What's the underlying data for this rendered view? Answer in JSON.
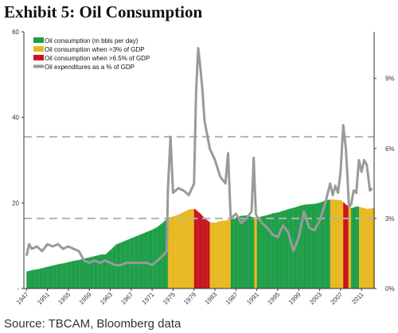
{
  "title": "Exhibit 5: Oil Consumption",
  "source": "Source: TBCAM, Bloomberg data",
  "chart_data": {
    "type": "bar",
    "title": "Exhibit 5: Oil Consumption",
    "x_tick_labels": [
      "1947",
      "1951",
      "1955",
      "1959",
      "1963",
      "1967",
      "1971",
      "1975",
      "1979",
      "1983",
      "1987",
      "1991",
      "1995",
      "1999",
      "2003",
      "2007",
      "2011"
    ],
    "y_left": {
      "ticks": [
        0,
        20,
        40,
        60
      ],
      "tick_labels": [
        "-",
        "20",
        "40",
        "60"
      ],
      "range": [
        0,
        60
      ]
    },
    "y_right": {
      "ticks": [
        0,
        3,
        6,
        9
      ],
      "tick_labels": [
        "0%",
        "3%",
        "6%",
        "9%"
      ],
      "range": [
        0,
        11
      ]
    },
    "x_range": [
      1946.5,
      2013.4
    ],
    "legend_position": "top-left",
    "legend": [
      {
        "label": "Oil consumption (m bbls per day)",
        "color": "#1e9e48"
      },
      {
        "label": "Oil consumption when >3% of GDP",
        "color": "#e8b820"
      },
      {
        "label": "Oil consumption when >6.5% of GDP",
        "color": "#c8141e"
      },
      {
        "label": "Oil expenditures as a % of GDP",
        "color": "#9a9a9a"
      }
    ],
    "reference_lines_pct": [
      6.5,
      3.0
    ],
    "series": [
      {
        "name": "Oil consumption (m bbls per day)",
        "axis": "left",
        "x": [
          1947,
          1948,
          1949,
          1950,
          1951,
          1952,
          1953,
          1954,
          1955,
          1956,
          1957,
          1958,
          1959,
          1960,
          1961,
          1962,
          1963,
          1964,
          1965,
          1966,
          1967,
          1968,
          1969,
          1970,
          1971,
          1972,
          1973,
          1974,
          1975,
          1976,
          1977,
          1978,
          1979,
          1980,
          1981,
          1982,
          1983,
          1984,
          1985,
          1986,
          1987,
          1988,
          1989,
          1990,
          1991,
          1992,
          1993,
          1994,
          1995,
          1996,
          1997,
          1998,
          1999,
          2000,
          2001,
          2002,
          2003,
          2004,
          2005,
          2006,
          2007,
          2008,
          2009,
          2010,
          2011,
          2012,
          2013
        ],
        "values": [
          4.0,
          4.3,
          4.5,
          4.8,
          5.1,
          5.4,
          5.7,
          5.9,
          6.2,
          6.5,
          6.7,
          7.0,
          7.3,
          7.6,
          7.9,
          8.0,
          9.1,
          10.3,
          10.8,
          11.3,
          11.8,
          12.3,
          12.8,
          13.3,
          13.8,
          14.5,
          15.5,
          16.6,
          16.9,
          17.3,
          17.9,
          18.5,
          18.6,
          17.6,
          16.3,
          15.4,
          15.4,
          15.8,
          15.9,
          16.3,
          16.6,
          17.0,
          17.1,
          16.7,
          16.6,
          16.9,
          17.2,
          17.6,
          17.8,
          18.2,
          18.6,
          18.9,
          19.3,
          19.6,
          19.7,
          19.8,
          20.1,
          20.6,
          20.8,
          20.7,
          20.6,
          19.5,
          18.8,
          19.2,
          18.9,
          18.6,
          18.8
        ]
      },
      {
        "name": "Oil expenditures as a % of GDP",
        "axis": "right",
        "x": [
          1947,
          1947.5,
          1948,
          1949,
          1950,
          1951,
          1952,
          1953,
          1954,
          1955,
          1956,
          1957,
          1958,
          1959,
          1960,
          1961,
          1962,
          1963,
          1964,
          1965,
          1966,
          1967,
          1968,
          1969,
          1970,
          1971,
          1972,
          1973,
          1973.8,
          1974,
          1974.5,
          1975,
          1976,
          1977,
          1978,
          1979,
          1979.4,
          1979.8,
          1980.2,
          1980.6,
          1981,
          1982,
          1983,
          1984,
          1985,
          1985.5,
          1986,
          1987,
          1988,
          1989,
          1990,
          1990.4,
          1990.8,
          1991,
          1992,
          1993,
          1994,
          1995,
          1996,
          1997,
          1998,
          1999,
          2000,
          2001,
          2002,
          2003,
          2004,
          2005,
          2005.5,
          2006,
          2006.5,
          2007,
          2007.5,
          2008,
          2008.3,
          2008.6,
          2009,
          2009.5,
          2010,
          2010.5,
          2011,
          2011.5,
          2012,
          2012.6,
          2013
        ],
        "values": [
          1.4,
          1.9,
          1.7,
          1.8,
          1.6,
          1.9,
          1.8,
          1.9,
          1.7,
          1.8,
          1.7,
          1.6,
          1.2,
          1.1,
          1.2,
          1.1,
          1.2,
          1.1,
          1.0,
          1.0,
          1.1,
          1.1,
          1.1,
          1.1,
          1.1,
          1.0,
          1.2,
          1.4,
          1.6,
          4.2,
          6.5,
          4.1,
          4.3,
          4.2,
          4.0,
          4.5,
          8.5,
          10.3,
          9.5,
          8.5,
          7.2,
          6.0,
          5.5,
          4.8,
          4.5,
          5.8,
          3.0,
          3.2,
          2.8,
          3.0,
          3.3,
          5.6,
          3.2,
          3.1,
          2.8,
          2.6,
          2.3,
          2.2,
          2.7,
          2.4,
          1.6,
          2.2,
          3.3,
          2.6,
          2.5,
          2.9,
          3.6,
          4.5,
          4.0,
          4.4,
          4.1,
          5.0,
          7.0,
          6.0,
          4.8,
          3.5,
          3.6,
          4.2,
          4.1,
          5.5,
          5.0,
          5.5,
          5.3,
          4.2,
          4.3
        ]
      }
    ],
    "highlight_periods": [
      {
        "from": 1974,
        "to": 1979,
        "level": ">3% of GDP"
      },
      {
        "from": 1979,
        "to": 1982,
        "level": ">6.5% of GDP"
      },
      {
        "from": 1982,
        "to": 1986,
        "level": ">3% of GDP"
      },
      {
        "from": 1990.5,
        "to": 1991,
        "level": ">3% of GDP"
      },
      {
        "from": 2005,
        "to": 2007.5,
        "level": ">3% of GDP"
      },
      {
        "from": 2007.5,
        "to": 2008.5,
        "level": ">6.5% of GDP"
      },
      {
        "from": 2008.5,
        "to": 2009,
        "level": ">3% of GDP"
      },
      {
        "from": 2010.5,
        "to": 2013.4,
        "level": ">3% of GDP"
      }
    ]
  }
}
